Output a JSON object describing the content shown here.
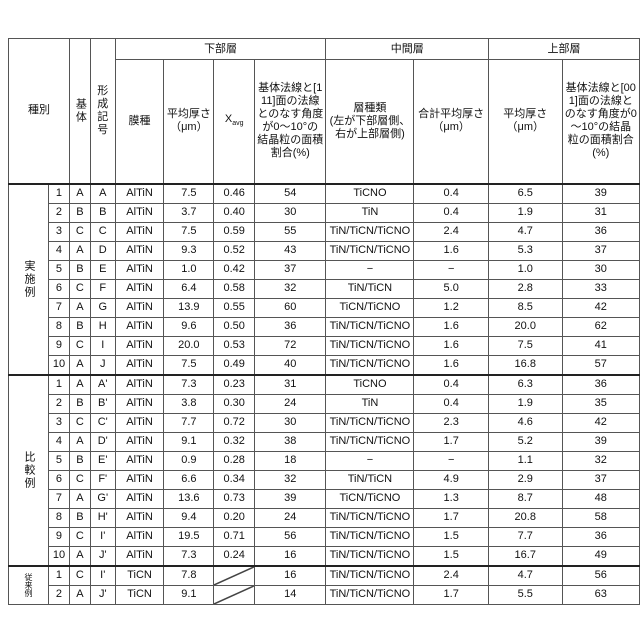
{
  "header": {
    "category": "種別",
    "substrate": "基体",
    "formation_code": "形\n成\n記\n号",
    "lower_layer": "下部層",
    "middle_layer": "中間層",
    "upper_layer": "上部層",
    "lower_film_type": "膜種",
    "lower_avg_thickness": "平均厚さ\n（μm）",
    "lower_xavg_main": "X",
    "lower_xavg_sub": "avg",
    "lower_area_ratio": "基体法線と[1\n11]面の法線\nとのなす角度\nが0～10°の\n結晶粒の面積\n割合(%)",
    "middle_layer_type": "層種類\n(左が下部層側、\n右が上部層側)",
    "middle_total_thickness": "合計平均厚さ\n（μm）",
    "upper_avg_thickness": "平均厚さ\n（μm）",
    "upper_area_ratio": "基体法線と[00\n1]面の法線と\nのなす角度が0\n～10°の結晶\n粒の面積割合\n(%)"
  },
  "groups": [
    {
      "label": "実施例",
      "rows": [
        [
          "1",
          "A",
          "A",
          "AlTiN",
          "7.5",
          "0.46",
          "54",
          "TiCNO",
          "0.4",
          "6.5",
          "39"
        ],
        [
          "2",
          "B",
          "B",
          "AlTiN",
          "3.7",
          "0.40",
          "30",
          "TiN",
          "0.4",
          "1.9",
          "31"
        ],
        [
          "3",
          "C",
          "C",
          "AlTiN",
          "7.5",
          "0.59",
          "55",
          "TiN/TiCN/TiCNO",
          "2.4",
          "4.7",
          "36"
        ],
        [
          "4",
          "A",
          "D",
          "AlTiN",
          "9.3",
          "0.52",
          "43",
          "TiN/TiCN/TiCNO",
          "1.6",
          "5.3",
          "37"
        ],
        [
          "5",
          "B",
          "E",
          "AlTiN",
          "1.0",
          "0.42",
          "37",
          "−",
          "−",
          "1.0",
          "30"
        ],
        [
          "6",
          "C",
          "F",
          "AlTiN",
          "6.4",
          "0.58",
          "32",
          "TiN/TiCN",
          "5.0",
          "2.8",
          "33"
        ],
        [
          "7",
          "A",
          "G",
          "AlTiN",
          "13.9",
          "0.55",
          "60",
          "TiCN/TiCNO",
          "1.2",
          "8.5",
          "42"
        ],
        [
          "8",
          "B",
          "H",
          "AlTiN",
          "9.6",
          "0.50",
          "36",
          "TiN/TiCN/TiCNO",
          "1.6",
          "20.0",
          "62"
        ],
        [
          "9",
          "C",
          "I",
          "AlTiN",
          "20.0",
          "0.53",
          "72",
          "TiN/TiCN/TiCNO",
          "1.6",
          "7.5",
          "41"
        ],
        [
          "10",
          "A",
          "J",
          "AlTiN",
          "7.5",
          "0.49",
          "40",
          "TiN/TiCN/TiCNO",
          "1.6",
          "16.8",
          "57"
        ]
      ]
    },
    {
      "label": "比較例",
      "rows": [
        [
          "1",
          "A",
          "A'",
          "AlTiN",
          "7.3",
          "0.23",
          "31",
          "TiCNO",
          "0.4",
          "6.3",
          "36"
        ],
        [
          "2",
          "B",
          "B'",
          "AlTiN",
          "3.8",
          "0.30",
          "24",
          "TiN",
          "0.4",
          "1.9",
          "35"
        ],
        [
          "3",
          "C",
          "C'",
          "AlTiN",
          "7.7",
          "0.72",
          "30",
          "TiN/TiCN/TiCNO",
          "2.3",
          "4.6",
          "42"
        ],
        [
          "4",
          "A",
          "D'",
          "AlTiN",
          "9.1",
          "0.32",
          "38",
          "TiN/TiCN/TiCNO",
          "1.7",
          "5.2",
          "39"
        ],
        [
          "5",
          "B",
          "E'",
          "AlTiN",
          "0.9",
          "0.28",
          "18",
          "−",
          "−",
          "1.1",
          "32"
        ],
        [
          "6",
          "C",
          "F'",
          "AlTiN",
          "6.6",
          "0.34",
          "32",
          "TiN/TiCN",
          "4.9",
          "2.9",
          "37"
        ],
        [
          "7",
          "A",
          "G'",
          "AlTiN",
          "13.6",
          "0.73",
          "39",
          "TiCN/TiCNO",
          "1.3",
          "8.7",
          "48"
        ],
        [
          "8",
          "B",
          "H'",
          "AlTiN",
          "9.4",
          "0.20",
          "24",
          "TiN/TiCN/TiCNO",
          "1.7",
          "20.8",
          "58"
        ],
        [
          "9",
          "C",
          "I'",
          "AlTiN",
          "19.5",
          "0.71",
          "56",
          "TiN/TiCN/TiCNO",
          "1.5",
          "7.7",
          "36"
        ],
        [
          "10",
          "A",
          "J'",
          "AlTiN",
          "7.3",
          "0.24",
          "16",
          "TiN/TiCN/TiCNO",
          "1.5",
          "16.7",
          "49"
        ]
      ]
    },
    {
      "label": "従来例",
      "rows": [
        [
          "1",
          "C",
          "I'",
          "TiCN",
          "7.8",
          "",
          "16",
          "TiN/TiCN/TiCNO",
          "2.4",
          "4.7",
          "56"
        ],
        [
          "2",
          "A",
          "J'",
          "TiCN",
          "9.1",
          "",
          "14",
          "TiN/TiCN/TiCNO",
          "1.7",
          "5.5",
          "63"
        ]
      ]
    }
  ]
}
